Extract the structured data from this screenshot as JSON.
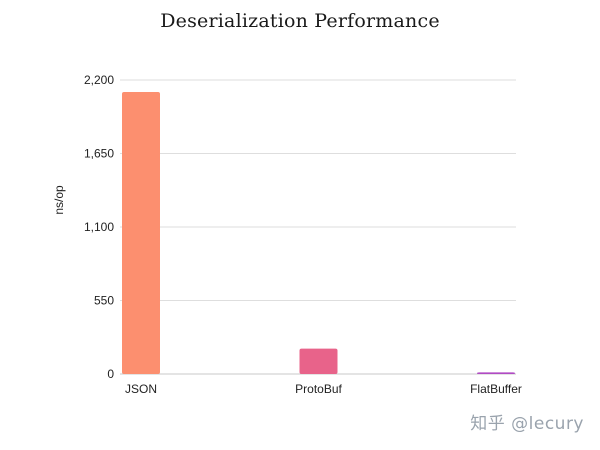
{
  "chart_data": {
    "type": "bar",
    "title": "Deserialization Performance",
    "ylabel": "ns/op",
    "xlabel": "",
    "categories": [
      "JSON",
      "ProtoBuf",
      "FlatBuffer"
    ],
    "values": [
      2110,
      190,
      12
    ],
    "colors": [
      "#fc8f6f",
      "#e8638a",
      "#b04bc3"
    ],
    "ylim": [
      0,
      2200
    ],
    "yticks": [
      0,
      550,
      1100,
      1650,
      2200
    ],
    "ytick_labels": [
      "0",
      "550",
      "1,100",
      "1,650",
      "2,200"
    ],
    "grid": true,
    "legend": "none"
  },
  "watermark": "知乎 @lecury"
}
